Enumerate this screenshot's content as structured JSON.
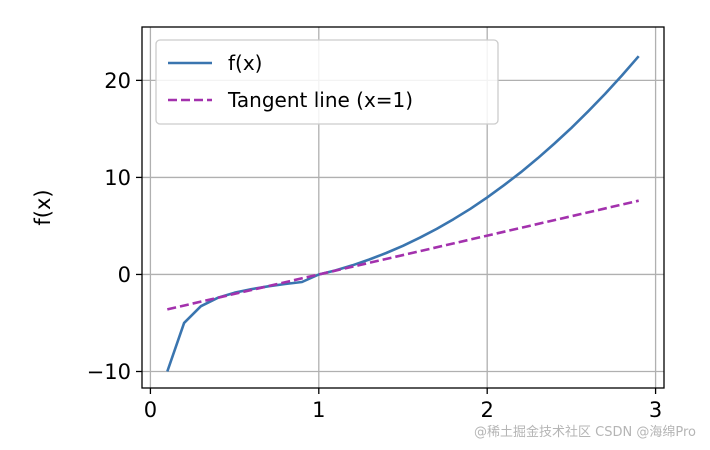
{
  "chart_data": {
    "type": "line",
    "title": "",
    "xlabel": "",
    "ylabel": "f(x)",
    "xlim": [
      -0.05,
      3.05
    ],
    "ylim": [
      -11.7,
      25.5
    ],
    "xticks": [
      0,
      1,
      2,
      3
    ],
    "xtick_labels": [
      "0",
      "1",
      "2",
      "3"
    ],
    "yticks": [
      -10,
      0,
      10,
      20
    ],
    "ytick_labels": [
      "−10",
      "0",
      "10",
      "20"
    ],
    "grid": true,
    "legend_position": "top-left",
    "series": [
      {
        "name": "f(x)",
        "color": "#3a75af",
        "style": "solid",
        "x": [
          0.1,
          0.2,
          0.3,
          0.4,
          0.5,
          0.6,
          0.7,
          0.8,
          0.9,
          1.0,
          1.1,
          1.2,
          1.3,
          1.4,
          1.5,
          1.6,
          1.7,
          1.8,
          1.9,
          2.0,
          2.1,
          2.2,
          2.3,
          2.4,
          2.5,
          2.6,
          2.7,
          2.8,
          2.9
        ],
        "y": [
          -9.997,
          -4.992,
          -3.273,
          -2.408,
          -1.875,
          -1.507,
          -1.222,
          -0.986,
          -0.775,
          0.0,
          0.421,
          0.944,
          1.54,
          2.212,
          2.958,
          3.785,
          4.695,
          5.69,
          6.771,
          7.938,
          9.193,
          10.535,
          11.968,
          13.49,
          15.104,
          16.811,
          18.611,
          20.506,
          22.495
        ]
      },
      {
        "name": "Tangent line (x=1)",
        "color": "#a331ad",
        "style": "dashed",
        "x": [
          0.1,
          2.9
        ],
        "y": [
          -3.6,
          7.6
        ]
      }
    ]
  },
  "watermark": {
    "line1": "@稀土掘金技术社区",
    "line2": "CSDN @海绵Pro"
  }
}
